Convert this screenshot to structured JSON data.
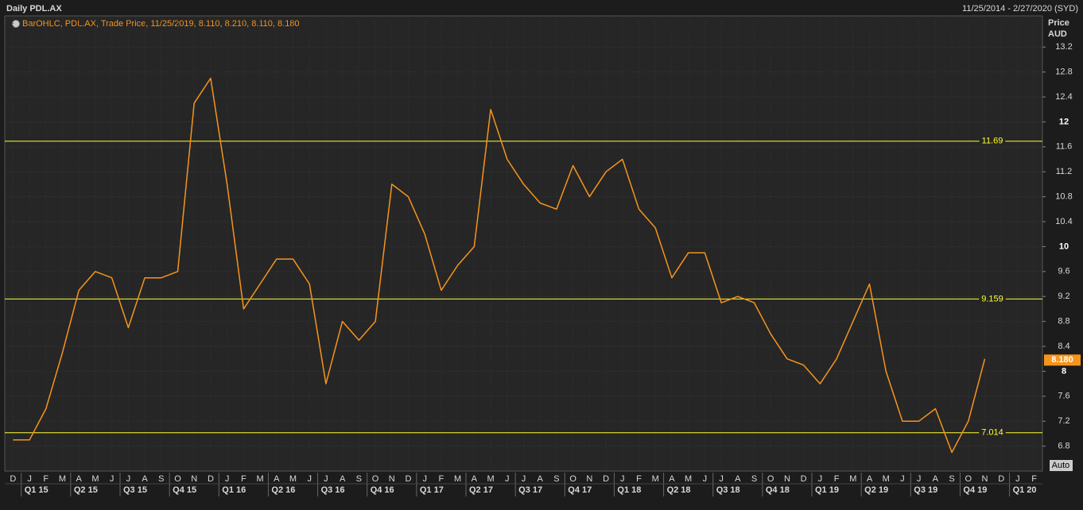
{
  "chart_data": {
    "type": "line",
    "title": "Daily PDL.AX",
    "date_range": "11/25/2014 - 2/27/2020 (SYD)",
    "legend_text": "BarOHLC, PDL.AX, Trade Price,  11/25/2019, 8.110, 8.210, 8.110, 8.180",
    "y_label": "Price",
    "y_unit": "AUD",
    "scale_button": "Auto",
    "categories": [
      "D",
      "J",
      "F",
      "M",
      "A",
      "M",
      "J",
      "J",
      "A",
      "S",
      "O",
      "N",
      "D",
      "J",
      "F",
      "M",
      "A",
      "M",
      "J",
      "J",
      "A",
      "S",
      "O",
      "N",
      "D",
      "J",
      "F",
      "M",
      "A",
      "M",
      "J",
      "J",
      "A",
      "S",
      "O",
      "N",
      "D",
      "J",
      "F",
      "M",
      "A",
      "M",
      "J",
      "J",
      "A",
      "S",
      "O",
      "N",
      "D",
      "J",
      "F",
      "M",
      "A",
      "M",
      "J",
      "J",
      "A",
      "S",
      "O",
      "N",
      "D",
      "J",
      "F"
    ],
    "quarters": [
      "Q1 15",
      "Q2 15",
      "Q3 15",
      "Q4 15",
      "Q1 16",
      "Q2 16",
      "Q3 16",
      "Q4 16",
      "Q1 17",
      "Q2 17",
      "Q3 17",
      "Q4 17",
      "Q1 18",
      "Q2 18",
      "Q3 18",
      "Q4 18",
      "Q1 19",
      "Q2 19",
      "Q3 19",
      "Q4 19",
      "Q1 20"
    ],
    "series": [
      {
        "color": "#f7941d",
        "values": [
          6.9,
          6.9,
          7.4,
          8.3,
          9.3,
          9.6,
          9.5,
          8.7,
          9.5,
          9.5,
          9.6,
          12.3,
          12.7,
          11.0,
          9.0,
          9.4,
          9.8,
          9.8,
          9.4,
          7.8,
          8.8,
          8.5,
          8.8,
          11.0,
          10.8,
          10.2,
          9.3,
          9.7,
          10.0,
          12.2,
          11.4,
          11.0,
          10.7,
          10.6,
          11.3,
          10.8,
          11.2,
          11.4,
          10.6,
          10.3,
          9.5,
          9.9,
          9.9,
          9.1,
          9.2,
          9.1,
          8.6,
          8.2,
          8.1,
          7.8,
          8.2,
          8.8,
          9.4,
          8.0,
          7.2,
          7.2,
          7.4,
          6.7,
          7.2,
          8.2,
          null,
          null,
          null
        ]
      }
    ],
    "levels": [
      11.69,
      9.159,
      7.014
    ],
    "level_color": "#ffff33",
    "last_price": {
      "value": 8.18,
      "label": "8.180"
    },
    "ylim": [
      6.4,
      13.7
    ],
    "yticks": [
      6.8,
      7.2,
      7.6,
      8,
      8.4,
      8.8,
      9.2,
      9.6,
      10,
      10.4,
      10.8,
      11.2,
      11.6,
      12,
      12.4,
      12.8,
      13.2
    ],
    "grid": true
  }
}
